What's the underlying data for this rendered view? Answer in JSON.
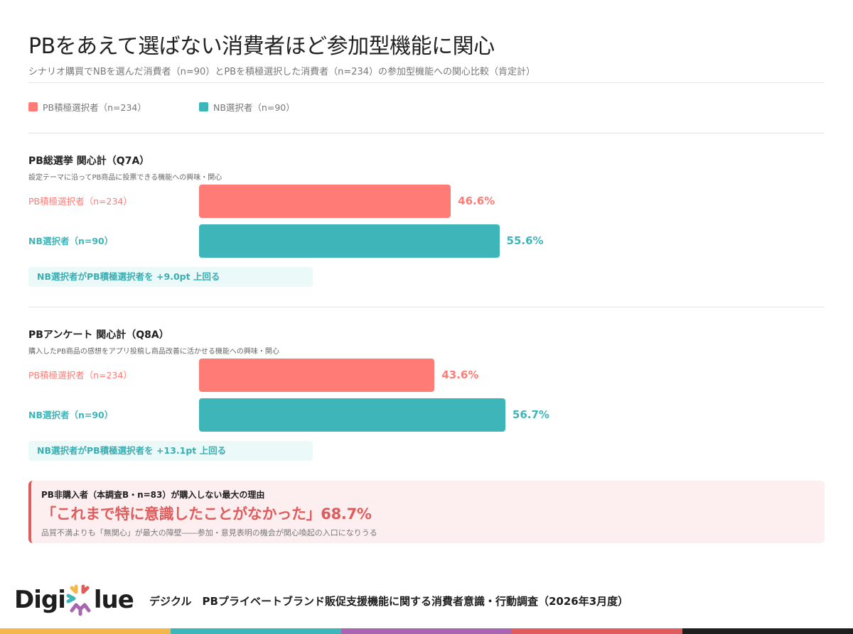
{
  "header": {
    "title": "PBをあえて選ばない消費者ほど参加型機能に関心",
    "subtitle": "シナリオ購買でNBを選んだ消費者（n=90）とPBを積極選択した消費者（n=234）の参加型機能への関心比較（肯定計）"
  },
  "legend": [
    {
      "label": "PB積極選択者（n=234）",
      "color": "#ff7b75"
    },
    {
      "label": "NB選択者（n=90）",
      "color": "#3db5b9"
    }
  ],
  "colors": {
    "pb": "#ff7b75",
    "nb": "#3db5b9",
    "accent_red": "#e05c5c",
    "note_bg": "#ebf9f9",
    "callout_bg": "#fdeef0"
  },
  "sections": [
    {
      "title": "PB総選挙 関心計（Q7A）",
      "description": "設定テーマに沿ってPB商品に投票できる機能への興味・関心",
      "rows": [
        {
          "label": "PB積極選択者（n=234）",
          "value": 46.6,
          "value_label": "46.6%"
        },
        {
          "label": "NB選択者（n=90）",
          "value": 55.6,
          "value_label": "55.6%"
        }
      ],
      "note": "NB選択者がPB積極選択者を +9.0pt 上回る"
    },
    {
      "title": "PBアンケート 関心計（Q8A）",
      "description": "購入したPB商品の感想をアプリ投稿し商品改善に活かせる機能への興味・関心",
      "rows": [
        {
          "label": "PB積極選択者（n=234）",
          "value": 43.6,
          "value_label": "43.6%"
        },
        {
          "label": "NB選択者（n=90）",
          "value": 56.7,
          "value_label": "56.7%"
        }
      ],
      "note": "NB選択者がPB積極選択者を +13.1pt 上回る"
    }
  ],
  "callout": {
    "heading": "PB非購入者（本調査B・n=83）が購入しない最大の理由",
    "main": "「これまで特に意識したことがなかった」68.7%",
    "sub": "品質不満よりも「無関心」が最大の障壁――参加・意見表明の機会が関心喚起の入口になりうる"
  },
  "footer": {
    "logo_left": "Digi",
    "logo_right": "lue",
    "logo_icon": "digiclue-asterisk-icon",
    "text": "デジクル　PBプライベートブランド販促支援機能に関する消費者意識・行動調査（2026年3月度）",
    "colorbar": [
      "#f2b84b",
      "#3db5b9",
      "#a866b0",
      "#e05c5c",
      "#1e1e1e"
    ]
  },
  "chart_data": [
    {
      "type": "bar",
      "orientation": "horizontal",
      "title": "PB総選挙 関心計（Q7A）",
      "subtitle": "設定テーマに沿ってPB商品に投票できる機能への興味・関心",
      "categories": [
        "PB積極選択者（n=234）",
        "NB選択者（n=90）"
      ],
      "values": [
        46.6,
        55.6
      ],
      "unit": "%",
      "xlim": [
        0,
        100
      ],
      "grid": false,
      "annotation": "NB選択者がPB積極選択者を +9.0pt 上回る"
    },
    {
      "type": "bar",
      "orientation": "horizontal",
      "title": "PBアンケート 関心計（Q8A）",
      "subtitle": "購入したPB商品の感想をアプリ投稿し商品改善に活かせる機能への興味・関心",
      "categories": [
        "PB積極選択者（n=234）",
        "NB選択者（n=90）"
      ],
      "values": [
        43.6,
        56.7
      ],
      "unit": "%",
      "xlim": [
        0,
        100
      ],
      "grid": false,
      "annotation": "NB選択者がPB積極選択者を +13.1pt 上回る"
    }
  ]
}
